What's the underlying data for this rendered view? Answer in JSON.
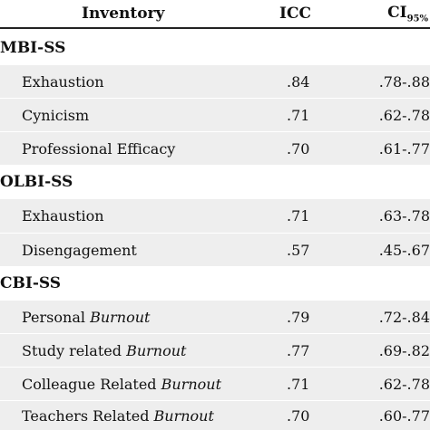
{
  "header": {
    "inventory": "Inventory",
    "icc": "ICC",
    "ci_base": "CI",
    "ci_sub": "95%"
  },
  "sections": [
    {
      "title": "MBI-SS",
      "rows": [
        {
          "name": "Exhaustion",
          "name_italic": "",
          "icc": ".84",
          "ci": ".78-.88"
        },
        {
          "name": "Cynicism",
          "name_italic": "",
          "icc": ".71",
          "ci": ".62-.78"
        },
        {
          "name": "Professional Efficacy",
          "name_italic": "",
          "icc": ".70",
          "ci": ".61-.77"
        }
      ]
    },
    {
      "title": "OLBI-SS",
      "rows": [
        {
          "name": "Exhaustion",
          "name_italic": "",
          "icc": ".71",
          "ci": ".63-.78"
        },
        {
          "name": "Disengagement",
          "name_italic": "",
          "icc": ".57",
          "ci": ".45-.67"
        }
      ]
    },
    {
      "title": "CBI-SS",
      "rows": [
        {
          "name": "Personal ",
          "name_italic": "Burnout",
          "icc": ".79",
          "ci": ".72-.84"
        },
        {
          "name": "Study related ",
          "name_italic": "Burnout",
          "icc": ".77",
          "ci": ".69-.82"
        },
        {
          "name": "Colleague Related ",
          "name_italic": "Burnout",
          "icc": ".71",
          "ci": ".62-.78"
        },
        {
          "name": "Teachers Related ",
          "name_italic": "Burnout",
          "icc": ".70",
          "ci": ".60-.77"
        }
      ]
    }
  ]
}
